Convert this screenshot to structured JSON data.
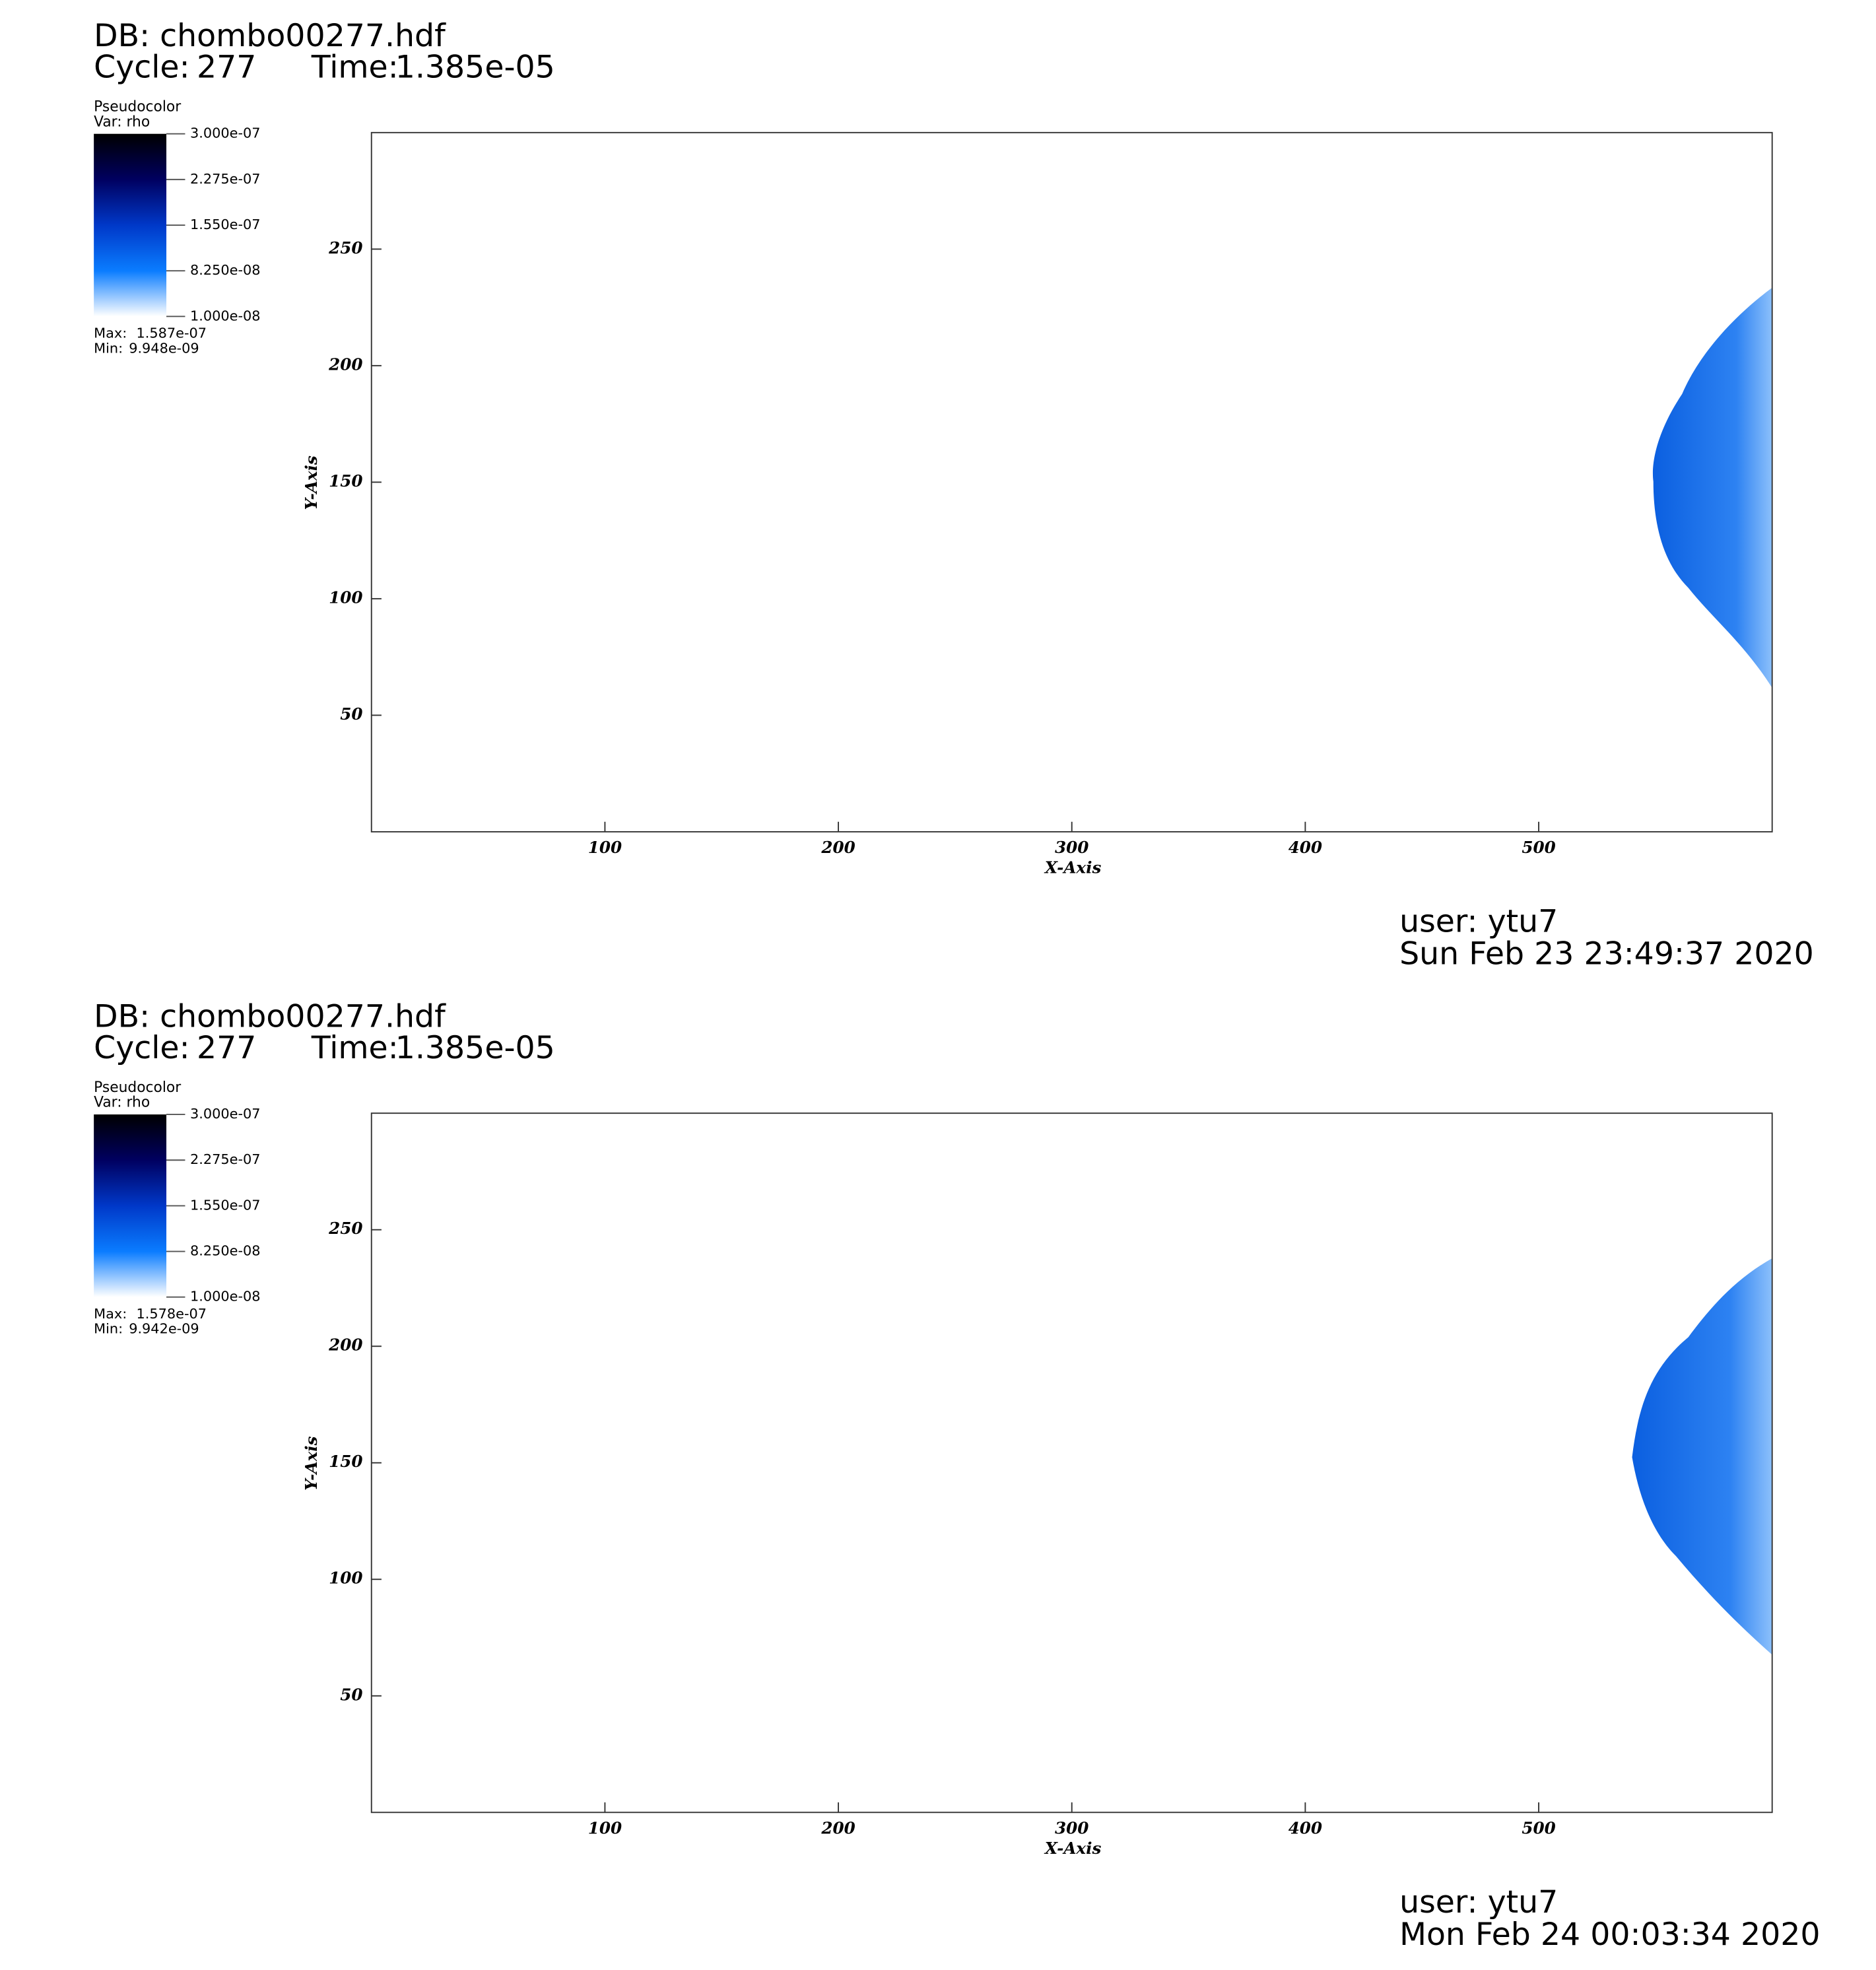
{
  "chart_data": [
    {
      "type": "pseudocolor",
      "db": "DB: chombo00277.hdf",
      "cycle_label": "Cycle:",
      "cycle": 277,
      "time_label": "Time:",
      "time": {
        "value": 1.385e-05,
        "label": "1.385e-05"
      },
      "legend_title": "Pseudocolor",
      "variable": "Var: rho",
      "clim": [
        1e-08,
        3e-07
      ],
      "cticks": [
        {
          "value": 3e-07,
          "label": "3.000e-07"
        },
        {
          "value": 2.275e-07,
          "label": "2.275e-07"
        },
        {
          "value": 1.55e-07,
          "label": "1.550e-07"
        },
        {
          "value": 8.25e-08,
          "label": "8.250e-08"
        },
        {
          "value": 1e-08,
          "label": "1.000e-08"
        }
      ],
      "colormap": [
        "#ffffff",
        "#0a7cff",
        "#0038c8",
        "#000060",
        "#000000"
      ],
      "max_label": "Max:",
      "max": {
        "value": 1.587e-07,
        "label": "1.587e-07"
      },
      "min_label": "Min:",
      "min": {
        "value": 9.948e-09,
        "label": "9.948e-09"
      },
      "xlabel": "X-Axis",
      "ylabel": "Y-Axis",
      "xlim": [
        0,
        600
      ],
      "ylim": [
        0,
        300
      ],
      "xticks": [
        100,
        200,
        300,
        400,
        500
      ],
      "yticks": [
        50,
        100,
        150,
        200,
        250
      ],
      "user": "user: ytu7",
      "date": "Sun Feb 23 23:49:37 2020"
    },
    {
      "type": "pseudocolor",
      "db": "DB: chombo00277.hdf",
      "cycle_label": "Cycle:",
      "cycle": 277,
      "time_label": "Time:",
      "time": {
        "value": 1.385e-05,
        "label": "1.385e-05"
      },
      "legend_title": "Pseudocolor",
      "variable": "Var: rho",
      "clim": [
        1e-08,
        3e-07
      ],
      "cticks": [
        {
          "value": 3e-07,
          "label": "3.000e-07"
        },
        {
          "value": 2.275e-07,
          "label": "2.275e-07"
        },
        {
          "value": 1.55e-07,
          "label": "1.550e-07"
        },
        {
          "value": 8.25e-08,
          "label": "8.250e-08"
        },
        {
          "value": 1e-08,
          "label": "1.000e-08"
        }
      ],
      "colormap": [
        "#ffffff",
        "#0a7cff",
        "#0038c8",
        "#000060",
        "#000000"
      ],
      "max_label": "Max:",
      "max": {
        "value": 1.578e-07,
        "label": "1.578e-07"
      },
      "min_label": "Min:",
      "min": {
        "value": 9.942e-09,
        "label": "9.942e-09"
      },
      "xlabel": "X-Axis",
      "ylabel": "Y-Axis",
      "xlim": [
        0,
        600
      ],
      "ylim": [
        0,
        300
      ],
      "xticks": [
        100,
        200,
        300,
        400,
        500
      ],
      "yticks": [
        50,
        100,
        150,
        200,
        250
      ],
      "user": "user: ytu7",
      "date": "Mon Feb 24 00:03:34 2020"
    }
  ]
}
